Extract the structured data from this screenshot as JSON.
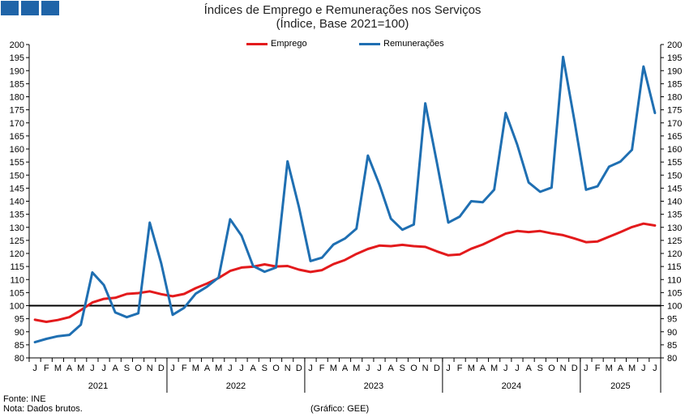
{
  "chart_data": {
    "type": "line",
    "title": "Índices de Emprego e Remunerações nos Serviços",
    "subtitle": "(Índice, Base 2021=100)",
    "ylim": [
      80,
      200
    ],
    "y_ticks": [
      80,
      85,
      90,
      95,
      100,
      105,
      110,
      115,
      120,
      125,
      130,
      135,
      140,
      145,
      150,
      155,
      160,
      165,
      170,
      175,
      180,
      185,
      190,
      195,
      200
    ],
    "secondary_y": true,
    "reference_line": 100,
    "legend_position": "top",
    "month_labels": [
      "J",
      "F",
      "M",
      "A",
      "M",
      "J",
      "J",
      "A",
      "S",
      "O",
      "N",
      "D",
      "J",
      "F",
      "M",
      "A",
      "M",
      "J",
      "J",
      "A",
      "S",
      "O",
      "N",
      "D",
      "J",
      "F",
      "M",
      "A",
      "M",
      "J",
      "J",
      "A",
      "S",
      "O",
      "N",
      "D",
      "J",
      "F",
      "M",
      "A",
      "M",
      "J",
      "J",
      "A",
      "S",
      "O",
      "N",
      "D",
      "J",
      "F",
      "M",
      "A",
      "M",
      "J",
      "J"
    ],
    "years": [
      {
        "label": "2021",
        "months": 12
      },
      {
        "label": "2022",
        "months": 12
      },
      {
        "label": "2023",
        "months": 12
      },
      {
        "label": "2024",
        "months": 12
      },
      {
        "label": "2025",
        "months": 7
      }
    ],
    "series": [
      {
        "name": "Emprego",
        "color": "#e31a1c",
        "values": [
          94.6,
          93.8,
          94.5,
          95.6,
          98.3,
          101.2,
          102.6,
          103.0,
          104.5,
          104.8,
          105.5,
          104.4,
          103.6,
          104.5,
          106.7,
          108.5,
          110.6,
          113.3,
          114.6,
          114.9,
          115.8,
          115.0,
          115.2,
          113.8,
          112.9,
          113.6,
          115.9,
          117.5,
          119.8,
          121.7,
          123.0,
          122.8,
          123.3,
          122.8,
          122.5,
          120.8,
          119.3,
          119.6,
          121.8,
          123.4,
          125.5,
          127.6,
          128.6,
          128.2,
          128.6,
          127.7,
          127.0,
          125.7,
          124.3,
          124.6,
          126.4,
          128.2,
          130.1,
          131.4,
          130.7
        ]
      },
      {
        "name": "Remunerações",
        "color": "#1f6fb2",
        "values": [
          86.0,
          87.3,
          88.3,
          88.8,
          92.7,
          112.7,
          107.9,
          97.4,
          95.6,
          97.1,
          131.8,
          116.2,
          96.5,
          99.2,
          104.6,
          107.3,
          110.8,
          133.1,
          126.8,
          115.2,
          113.0,
          114.6,
          155.3,
          137.7,
          117.1,
          118.4,
          123.4,
          125.7,
          129.5,
          157.5,
          146.4,
          133.3,
          129.1,
          131.1,
          177.5,
          155.0,
          131.8,
          134.1,
          140.0,
          139.6,
          144.4,
          173.8,
          161.7,
          147.2,
          143.6,
          145.2,
          195.3,
          170.5,
          144.4,
          145.7,
          153.2,
          155.2,
          159.7,
          191.6,
          173.8
        ]
      }
    ]
  },
  "footer": {
    "source": "Fonte: INE",
    "note": "Nota: Dados brutos.",
    "credit": "(Gráfico: GEE)"
  }
}
